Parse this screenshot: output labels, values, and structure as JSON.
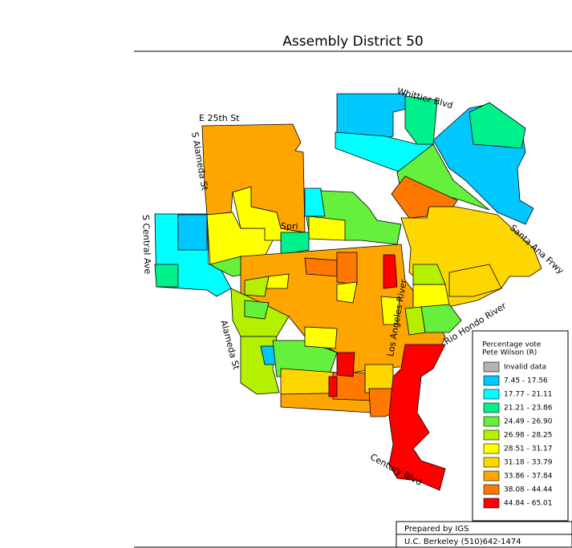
{
  "title": "Assembly District 50",
  "streets": [
    "Whittier Blvd",
    "E 25th St",
    "S Alameda St",
    "S Central Ave",
    "Spri",
    "Alameda St",
    "Los Angeles River",
    "Santa Ana Frwy",
    "Rio Hondo River",
    "Century Blvd"
  ],
  "legend": {
    "title": [
      "Percentage vote",
      "Pete Wilson (R)"
    ],
    "items": [
      {
        "label": "Invalid data",
        "color": "#b4b4b4"
      },
      {
        "label": "7.45 - 17.56",
        "color": "#00c8ff"
      },
      {
        "label": "17.77 - 21.11",
        "color": "#00ffff"
      },
      {
        "label": "21.21 - 23.86",
        "color": "#00f08c"
      },
      {
        "label": "24.49 - 26.90",
        "color": "#64f03c"
      },
      {
        "label": "26.98 - 28.25",
        "color": "#b4f000"
      },
      {
        "label": "28.51 - 31.17",
        "color": "#ffff00"
      },
      {
        "label": "31.18 - 33.79",
        "color": "#ffd700"
      },
      {
        "label": "33.86 - 37.84",
        "color": "#ffa500"
      },
      {
        "label": "38.08 - 44.44",
        "color": "#ff7800"
      },
      {
        "label": "44.84 - 65.01",
        "color": "#ff0000"
      }
    ]
  },
  "footer": [
    "Prepared by IGS",
    "U.C. Berkeley (510)642-1474"
  ]
}
